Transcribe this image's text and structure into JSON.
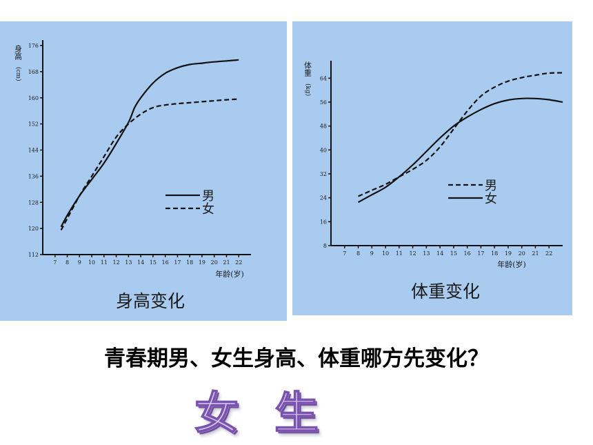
{
  "chart_data": [
    {
      "type": "line",
      "caption": "身高变化",
      "ylabel": "身高(cm)",
      "xlabel": "年龄(岁)",
      "xlim": [
        6,
        23
      ],
      "ylim": [
        112,
        176
      ],
      "xticks": [
        7,
        8,
        9,
        10,
        11,
        12,
        13,
        14,
        15,
        16,
        17,
        18,
        19,
        20,
        21,
        22
      ],
      "yticks": [
        112,
        120,
        128,
        136,
        144,
        152,
        160,
        168,
        176
      ],
      "legend_position": "center-right",
      "series": [
        {
          "name": "男",
          "style": "solid",
          "color": "#111111",
          "x": [
            7.5,
            8,
            9,
            10,
            11,
            12,
            13,
            13.5,
            14,
            15,
            16,
            17,
            18,
            19,
            20,
            21,
            22
          ],
          "y": [
            120.5,
            124,
            130,
            135,
            140,
            146,
            152.5,
            157,
            160,
            164.5,
            167.5,
            169.2,
            170.2,
            170.6,
            171,
            171.3,
            171.6
          ]
        },
        {
          "name": "女",
          "style": "dashed",
          "color": "#111111",
          "x": [
            7.5,
            8,
            9,
            10,
            11,
            12,
            13,
            14,
            15,
            16,
            17,
            18,
            19,
            20,
            21,
            22
          ],
          "y": [
            119.5,
            123,
            130,
            136,
            142,
            148,
            152,
            155,
            157,
            157.8,
            158.2,
            158.5,
            158.8,
            159.1,
            159.4,
            159.6
          ]
        }
      ]
    },
    {
      "type": "line",
      "caption": "体重变化",
      "ylabel": "体重(kg)",
      "xlabel": "年龄(岁)",
      "xlim": [
        6,
        23
      ],
      "ylim": [
        8,
        68
      ],
      "xticks": [
        7,
        8,
        9,
        10,
        11,
        12,
        13,
        14,
        15,
        16,
        17,
        18,
        19,
        20,
        21,
        22
      ],
      "yticks": [
        8,
        16,
        24,
        32,
        40,
        48,
        56,
        64
      ],
      "legend_position": "center-right",
      "series": [
        {
          "name": "男",
          "style": "dashed",
          "color": "#111111",
          "x": [
            8,
            9,
            10,
            11,
            12,
            13,
            14,
            15,
            16,
            17,
            18,
            19,
            20,
            21,
            22,
            23
          ],
          "y": [
            24.5,
            26.5,
            28.5,
            31,
            33.5,
            36.5,
            41,
            47,
            53,
            58,
            61,
            63,
            64.2,
            65,
            65.7,
            65.8
          ]
        },
        {
          "name": "女",
          "style": "solid",
          "color": "#111111",
          "x": [
            8,
            9,
            10,
            11,
            12,
            13,
            14,
            15,
            16,
            17,
            18,
            19,
            20,
            21,
            22,
            23
          ],
          "y": [
            22.5,
            25,
            27.5,
            31,
            35,
            39.5,
            44,
            48,
            51,
            53.5,
            55.5,
            56.7,
            57.2,
            57.2,
            56.8,
            56
          ]
        }
      ]
    }
  ],
  "question": "青春期男、女生身高、体重哪方先变化？",
  "answer": "女生"
}
